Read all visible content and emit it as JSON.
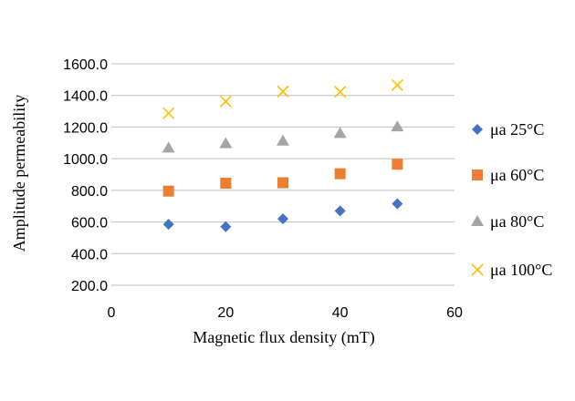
{
  "chart_data": {
    "type": "scatter",
    "xlabel": "Magnetic flux density (mT)",
    "ylabel": "Amplitude permeability",
    "xlim": [
      0,
      60
    ],
    "ylim": [
      200,
      1600
    ],
    "x_ticks": [
      "0",
      "20",
      "40",
      "60"
    ],
    "y_ticks": [
      "200.0",
      "400.0",
      "600.0",
      "800.0",
      "1000.0",
      "1200.0",
      "1400.0",
      "1600.0"
    ],
    "grid": "horizontal",
    "legend_position": "right",
    "series": [
      {
        "name": "μa 25°C",
        "marker": "diamond",
        "color": "#4472C4",
        "x": [
          10,
          20,
          30,
          40,
          50
        ],
        "y": [
          585,
          570,
          620,
          670,
          715
        ]
      },
      {
        "name": "μa 60°C",
        "marker": "square",
        "color": "#ED7D31",
        "x": [
          10,
          20,
          30,
          40,
          50
        ],
        "y": [
          795,
          845,
          848,
          905,
          965
        ]
      },
      {
        "name": "μa 80°C",
        "marker": "triangle",
        "color": "#A5A5A5",
        "x": [
          10,
          20,
          30,
          40,
          50
        ],
        "y": [
          1068,
          1096,
          1112,
          1160,
          1202
        ]
      },
      {
        "name": "μa 100°C",
        "marker": "x",
        "color": "#FFC000",
        "x": [
          10,
          20,
          30,
          40,
          50
        ],
        "y": [
          1287,
          1362,
          1425,
          1423,
          1465
        ]
      }
    ]
  }
}
